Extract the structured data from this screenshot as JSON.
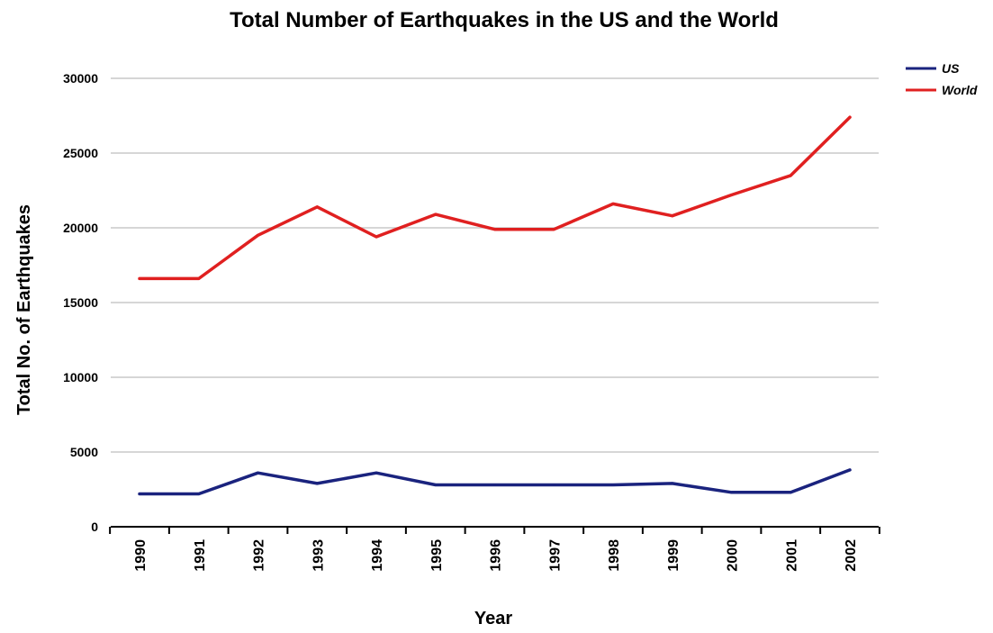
{
  "chart_data": {
    "type": "line",
    "title": "Total Number of Earthquakes in the US and the World",
    "xlabel": "Year",
    "ylabel": "Total No. of Earthquakes",
    "categories": [
      "1990",
      "1991",
      "1992",
      "1993",
      "1994",
      "1995",
      "1996",
      "1997",
      "1998",
      "1999",
      "2000",
      "2001",
      "2002"
    ],
    "ylim": [
      0,
      30000
    ],
    "yticks": [
      "0",
      "5000",
      "10000",
      "15000",
      "20000",
      "25000",
      "30000"
    ],
    "grid": "horizontal",
    "legend_position": "top-right",
    "series": [
      {
        "name": "US",
        "color": "#1a237e",
        "values": [
          2200,
          2200,
          3600,
          2900,
          3600,
          2800,
          2800,
          2800,
          2800,
          2900,
          2300,
          2300,
          3800
        ]
      },
      {
        "name": "World",
        "color": "#e02020",
        "values": [
          16600,
          16600,
          19500,
          21400,
          19400,
          20900,
          19900,
          19900,
          21600,
          20800,
          22200,
          23500,
          27400
        ]
      }
    ]
  }
}
